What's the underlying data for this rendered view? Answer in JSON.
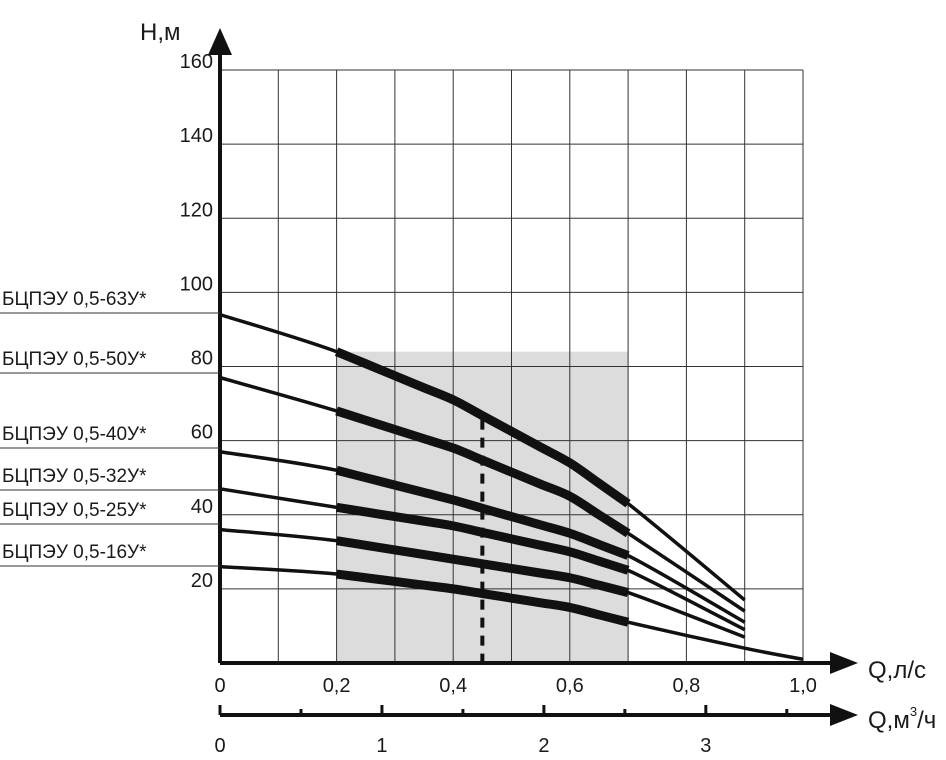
{
  "chart_data": {
    "type": "line",
    "ylabel": "H,м",
    "xlabel": "Q,л/с",
    "x2label_prefix": "Q,м",
    "x2label_sup": "3",
    "x2label_suffix": "/ч",
    "xlim": [
      0,
      1.0
    ],
    "ylim": [
      0,
      160
    ],
    "x_ticks": [
      "0",
      "0,2",
      "0,4",
      "0,6",
      "0,8",
      "1,0"
    ],
    "y_ticks": [
      "20",
      "40",
      "60",
      "80",
      "100",
      "120",
      "140",
      "160"
    ],
    "x2_ticks": [
      "0",
      "1",
      "2",
      "3"
    ],
    "grid": true,
    "working_range": {
      "x_min": 0.2,
      "x_max": 0.7,
      "marker_x": 0.45
    },
    "series": [
      {
        "name": "БЦПЭУ 0,5-63У*",
        "x": [
          0,
          0.2,
          0.4,
          0.6,
          0.7,
          0.9
        ],
        "y": [
          94,
          84,
          71,
          54,
          43,
          17
        ]
      },
      {
        "name": "БЦПЭУ 0,5-50У*",
        "x": [
          0,
          0.2,
          0.4,
          0.6,
          0.7,
          0.9
        ],
        "y": [
          77,
          68,
          58,
          45,
          35,
          14
        ]
      },
      {
        "name": "БЦПЭУ 0,5-40У*",
        "x": [
          0,
          0.2,
          0.4,
          0.6,
          0.7,
          0.9
        ],
        "y": [
          57,
          52,
          44,
          35,
          29,
          11
        ]
      },
      {
        "name": "БЦПЭУ 0,5-32У*",
        "x": [
          0,
          0.2,
          0.4,
          0.6,
          0.7,
          0.9
        ],
        "y": [
          47,
          42,
          37,
          30,
          25,
          9
        ]
      },
      {
        "name": "БЦПЭУ 0,5-25У*",
        "x": [
          0,
          0.2,
          0.4,
          0.6,
          0.7,
          0.9
        ],
        "y": [
          36,
          33,
          28,
          23,
          19,
          7
        ]
      },
      {
        "name": "БЦПЭУ 0,5-16У*",
        "x": [
          0,
          0.2,
          0.4,
          0.6,
          0.7,
          0.9,
          1.0
        ],
        "y": [
          26,
          24,
          20,
          15,
          11,
          4,
          1
        ]
      }
    ]
  }
}
